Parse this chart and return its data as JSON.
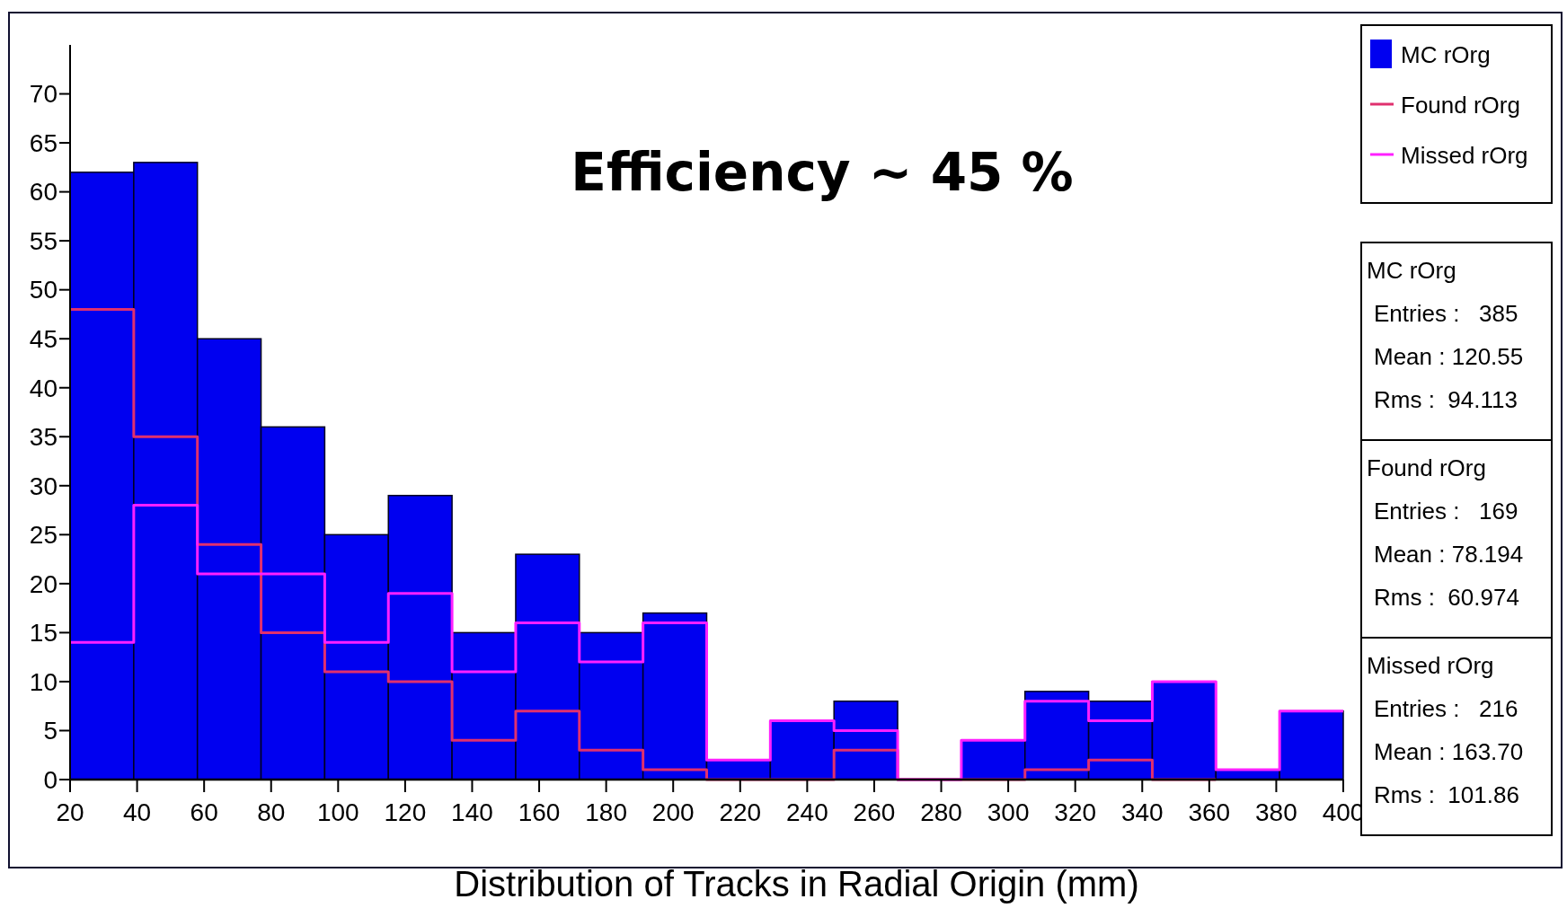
{
  "chart_data": {
    "type": "histogram",
    "xlabel": "Distribution of Tracks in Radial Origin (mm)",
    "bins": [
      20,
      39,
      58,
      77,
      96,
      115,
      134,
      153,
      172,
      191,
      210,
      229,
      248,
      267,
      286,
      305,
      324,
      343,
      362,
      381,
      400
    ],
    "series": [
      {
        "name": "MC rOrg",
        "type": "histogram",
        "color": "#0000f0",
        "values": [
          62,
          63,
          45,
          36,
          25,
          29,
          15,
          23,
          15,
          17,
          2,
          6,
          8,
          0,
          4,
          9,
          8,
          10,
          1,
          7
        ]
      },
      {
        "name": "Found rOrg",
        "type": "step",
        "color": "#e0306e",
        "x": [
          20,
          39,
          58,
          77,
          96,
          115,
          134,
          153,
          172,
          191,
          210,
          229,
          248,
          267,
          286,
          305,
          324,
          343,
          362
        ],
        "values": [
          48,
          35,
          24,
          15,
          11,
          10,
          4,
          7,
          3,
          1,
          0,
          0,
          3,
          0,
          0,
          1,
          2,
          0,
          0
        ]
      },
      {
        "name": "Missed rOrg",
        "type": "step",
        "color": "#ff20ff",
        "x": [
          20,
          39,
          58,
          77,
          96,
          115,
          134,
          153,
          172,
          191,
          210,
          229,
          248,
          267,
          286,
          305,
          324,
          343,
          362,
          381,
          400
        ],
        "values": [
          14,
          28,
          21,
          21,
          14,
          19,
          11,
          16,
          12,
          16,
          2,
          6,
          5,
          0,
          4,
          8,
          6,
          10,
          1,
          7,
          7
        ]
      }
    ],
    "xlim": [
      20,
      400
    ],
    "xticks": [
      20,
      40,
      60,
      80,
      100,
      120,
      140,
      160,
      180,
      200,
      220,
      240,
      260,
      280,
      300,
      320,
      340,
      360,
      380,
      400
    ],
    "ylim": [
      0,
      75
    ],
    "yticks": [
      0,
      5,
      10,
      15,
      20,
      25,
      30,
      35,
      40,
      45,
      50,
      55,
      60,
      65,
      70
    ],
    "grid": false,
    "legend": "top right",
    "annotations": [
      "Efficiency ~ 45 %",
      "MC rOrg",
      "Entries :   385",
      "Mean : 120.55",
      "Rms :  94.113",
      "Found rOrg",
      "Entries :   169",
      "Mean : 78.194",
      "Rms :  60.974",
      "Missed rOrg",
      "Entries :   216",
      "Mean : 163.70",
      "Rms :  101.86"
    ]
  }
}
